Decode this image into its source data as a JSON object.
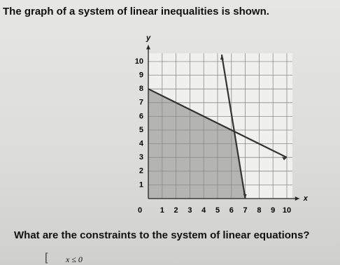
{
  "header": {
    "title": "The graph of a system of linear inequalities is shown."
  },
  "graph": {
    "x_label": "x",
    "y_label": "y",
    "origin_label": "0",
    "x_ticks": [
      "1",
      "2",
      "3",
      "4",
      "5",
      "6",
      "7",
      "8",
      "9",
      "10"
    ],
    "y_ticks": [
      "1",
      "2",
      "3",
      "4",
      "5",
      "6",
      "7",
      "8",
      "9",
      "10"
    ]
  },
  "question": "What are the constraints to the system of linear equations?",
  "answer_choice": "x ≤ 0"
}
